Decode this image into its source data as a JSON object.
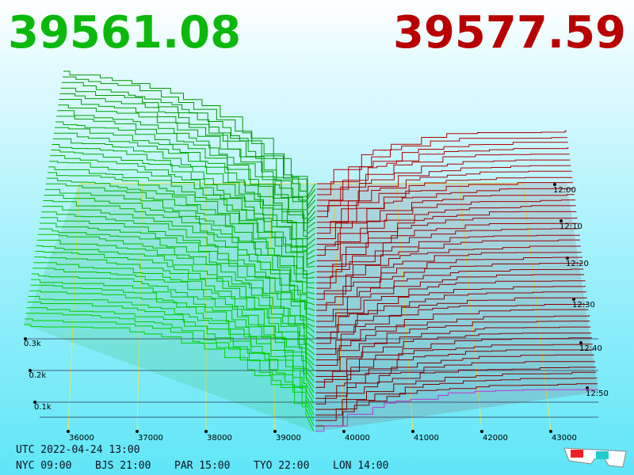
{
  "header": {
    "bid": "39561.08",
    "ask": "39577.59"
  },
  "price_axis": {
    "labels": [
      "36000",
      "37000",
      "38000",
      "39000",
      "40000",
      "41000",
      "42000",
      "43000"
    ]
  },
  "time_axis": {
    "labels": [
      "12:00",
      "12:10",
      "12:20",
      "12:30",
      "12:40",
      "12:50"
    ]
  },
  "depth_axis": {
    "labels": [
      "0.3k",
      "0.2k",
      "0.1k"
    ]
  },
  "footer": {
    "utc": "UTC 2022-04-24 13:00",
    "cities": [
      "NYC 09:00",
      "BJS 21:00",
      "PAR 15:00",
      "TYO 22:00",
      "LON 14:00"
    ]
  }
}
